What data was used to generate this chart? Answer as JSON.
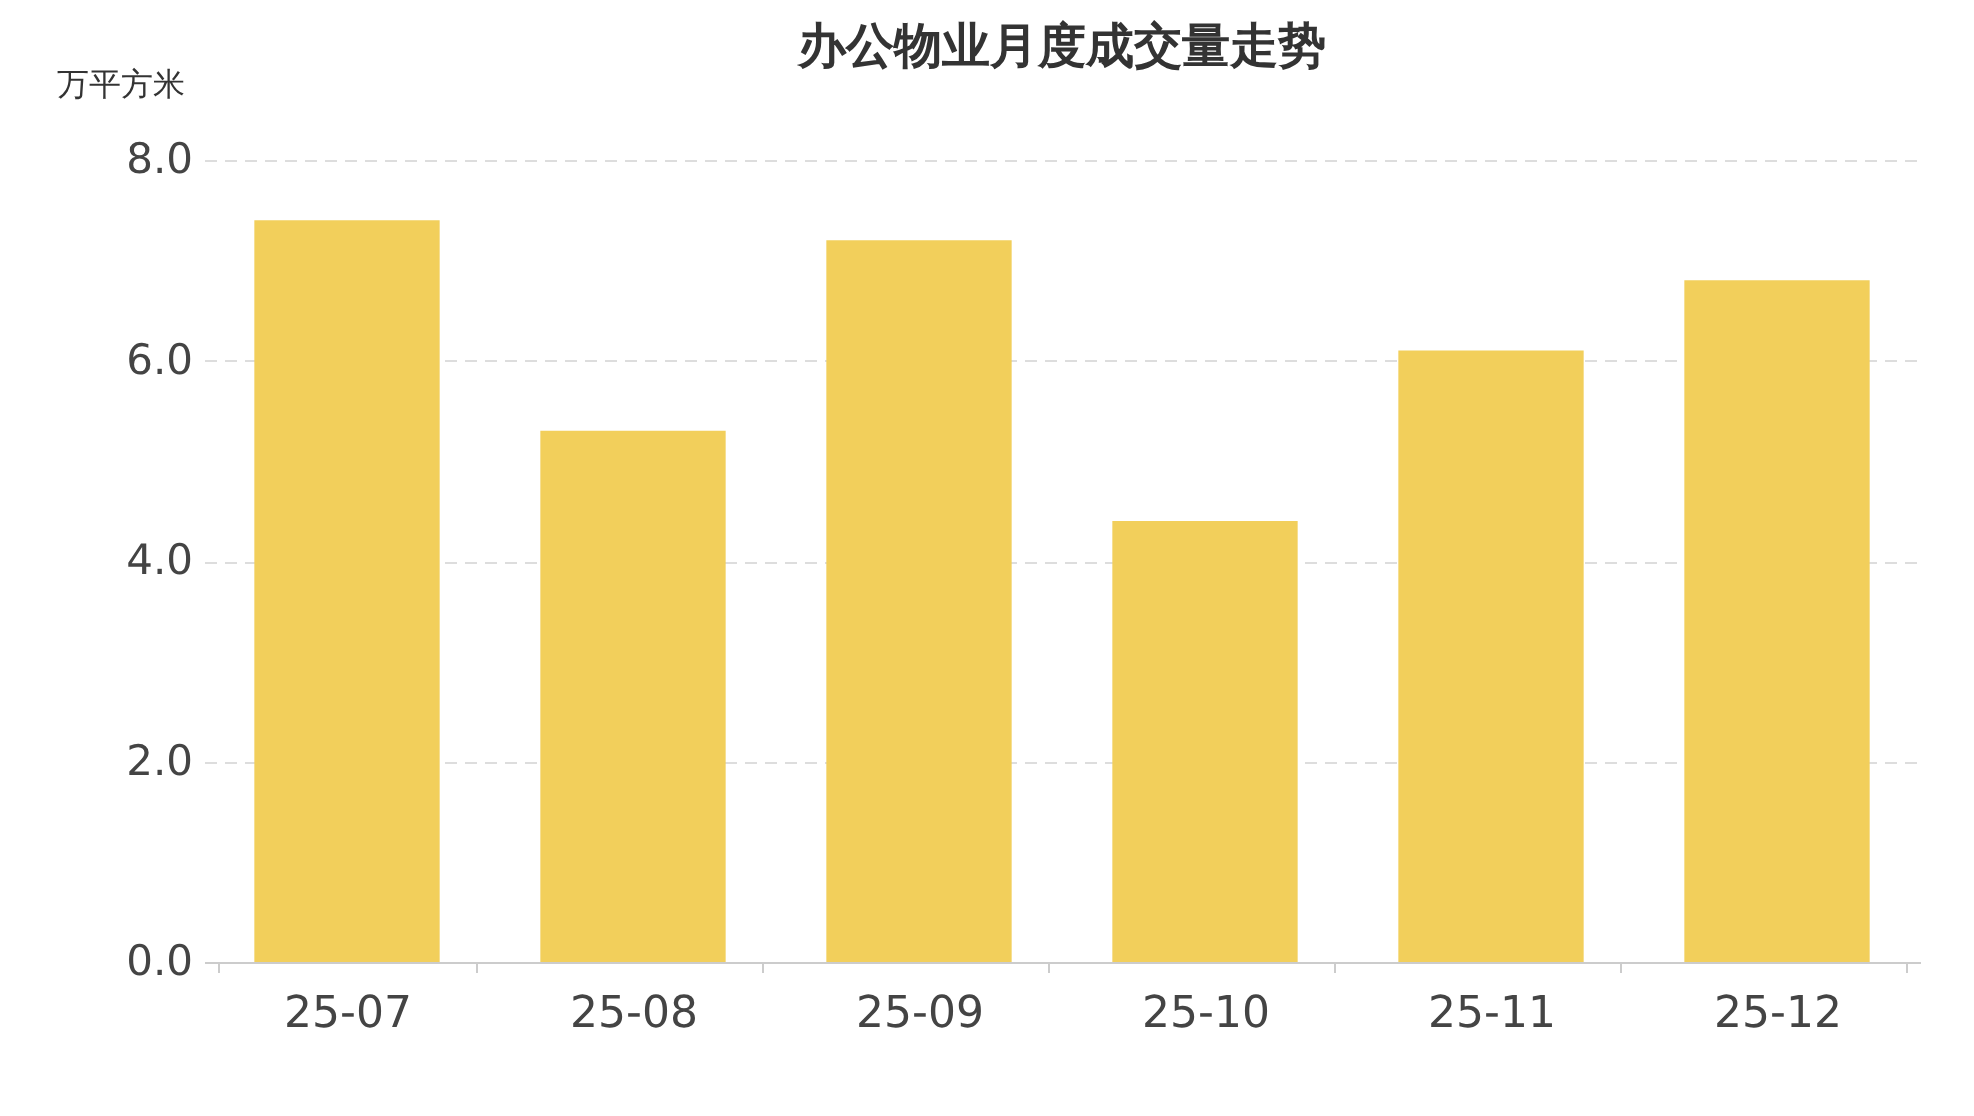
{
  "chart_data": {
    "type": "bar",
    "title": "办公物业月度成交量走势",
    "ylabel": "万平方米",
    "categories": [
      "25-07",
      "25-08",
      "25-09",
      "25-10",
      "25-11",
      "25-12"
    ],
    "values": [
      7.4,
      5.3,
      7.2,
      4.4,
      6.1,
      6.8
    ],
    "color": "#f2cf5b",
    "ylim": [
      0,
      8
    ],
    "yticks": [
      {
        "value": 0,
        "label": "0.0"
      },
      {
        "value": 2,
        "label": "2.0"
      },
      {
        "value": 4,
        "label": "4.0"
      },
      {
        "value": 6,
        "label": "6.0"
      },
      {
        "value": 8,
        "label": "8.0"
      }
    ],
    "grid": "y"
  }
}
